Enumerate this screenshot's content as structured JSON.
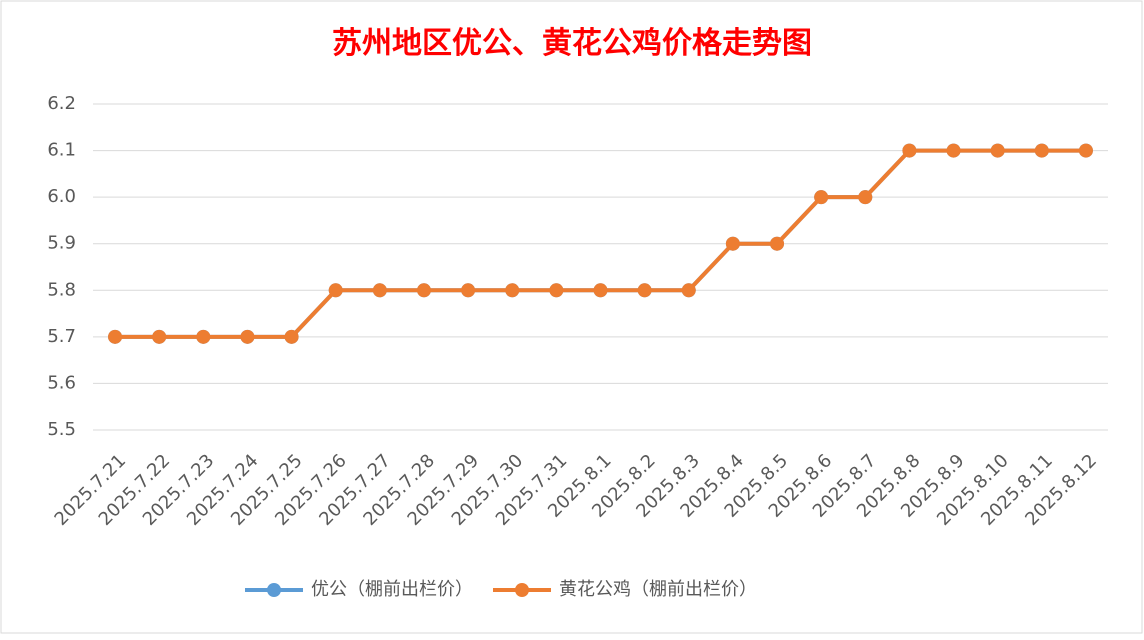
{
  "chart_data": {
    "type": "line",
    "title": "苏州地区优公、黄花公鸡价格走势图",
    "categories": [
      "2025.7.21",
      "2025.7.22",
      "2025.7.23",
      "2025.7.24",
      "2025.7.25",
      "2025.7.26",
      "2025.7.27",
      "2025.7.28",
      "2025.7.29",
      "2025.7.30",
      "2025.7.31",
      "2025.8.1",
      "2025.8.2",
      "2025.8.3",
      "2025.8.4",
      "2025.8.5",
      "2025.8.6",
      "2025.8.7",
      "2025.8.8",
      "2025.8.9",
      "2025.8.10",
      "2025.8.11",
      "2025.8.12"
    ],
    "series": [
      {
        "name": "优公（棚前出栏价）",
        "color": "#5b9bd5",
        "values": [
          5.7,
          5.7,
          5.7,
          5.7,
          5.7,
          5.8,
          5.8,
          5.8,
          5.8,
          5.8,
          5.8,
          5.8,
          5.8,
          5.8,
          5.9,
          5.9,
          6.0,
          6.0,
          6.1,
          6.1,
          6.1,
          6.1,
          6.1
        ]
      },
      {
        "name": "黄花公鸡（棚前出栏价）",
        "color": "#ed7d31",
        "values": [
          5.7,
          5.7,
          5.7,
          5.7,
          5.7,
          5.8,
          5.8,
          5.8,
          5.8,
          5.8,
          5.8,
          5.8,
          5.8,
          5.8,
          5.9,
          5.9,
          6.0,
          6.0,
          6.1,
          6.1,
          6.1,
          6.1,
          6.1
        ]
      }
    ],
    "ylim": [
      5.5,
      6.2
    ],
    "yticks": [
      5.5,
      5.6,
      5.7,
      5.8,
      5.9,
      {
        "value": 6,
        "label": "6.0"
      },
      6.1,
      6.2
    ],
    "grid": true,
    "legend": "bottom"
  }
}
